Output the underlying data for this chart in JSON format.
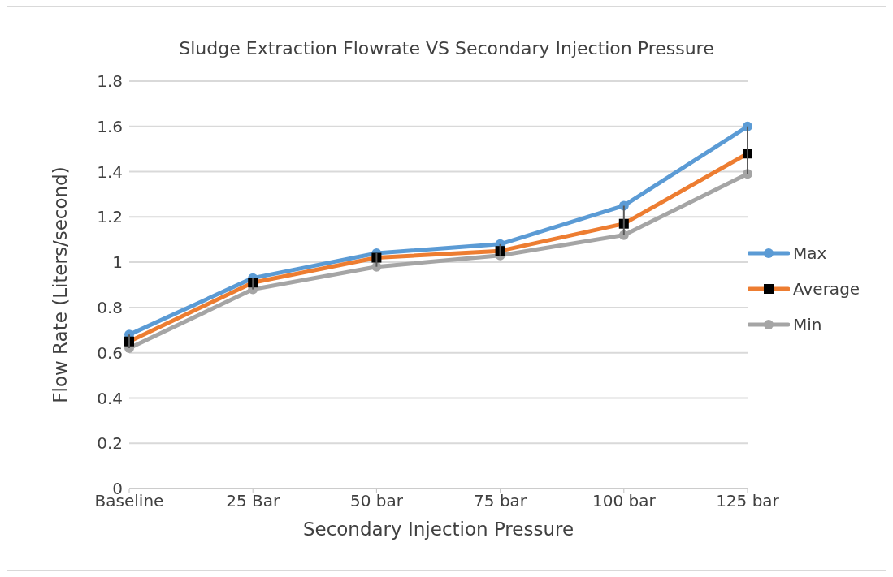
{
  "chart_data": {
    "type": "line",
    "title": "Sludge Extraction Flowrate VS Secondary Injection Pressure",
    "xlabel": "Secondary Injection Pressure",
    "ylabel": "Flow Rate (Liters/second)",
    "categories": [
      "Baseline",
      "25 Bar",
      "50 bar",
      "75 bar",
      "100 bar",
      "125 bar"
    ],
    "series": [
      {
        "name": "Max",
        "color": "#5b9bd5",
        "marker": "circle",
        "values": [
          0.68,
          0.93,
          1.04,
          1.08,
          1.25,
          1.6
        ]
      },
      {
        "name": "Average",
        "color": "#ed7d31",
        "marker": "square",
        "values": [
          0.65,
          0.91,
          1.02,
          1.05,
          1.17,
          1.48
        ],
        "errors": [
          [
            0.62,
            0.68
          ],
          [
            0.88,
            0.93
          ],
          [
            0.98,
            1.04
          ],
          [
            1.03,
            1.08
          ],
          [
            1.12,
            1.25
          ],
          [
            1.39,
            1.6
          ]
        ]
      },
      {
        "name": "Min",
        "color": "#a5a5a5",
        "marker": "circle",
        "values": [
          0.62,
          0.88,
          0.98,
          1.03,
          1.12,
          1.39
        ]
      }
    ],
    "ylim": [
      0,
      1.8
    ],
    "yticks": [
      0,
      0.2,
      0.4,
      0.6,
      0.8,
      1,
      1.2,
      1.4,
      1.6,
      1.8
    ],
    "grid": "y",
    "legend": "right"
  }
}
